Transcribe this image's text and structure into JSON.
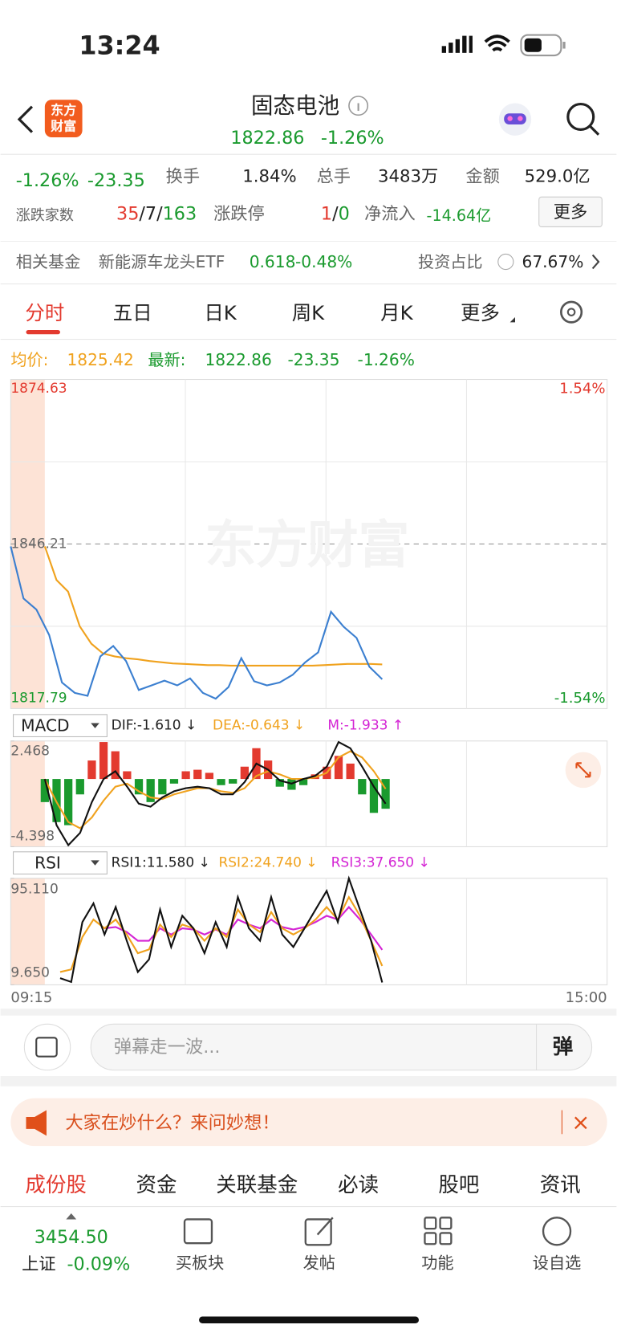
{
  "status": {
    "time": "13:24"
  },
  "header": {
    "logo": [
      "东方",
      "财富"
    ],
    "title": "固态电池",
    "price": "1822.86",
    "change": "-1.26%"
  },
  "stats": {
    "change_pct": "-1.26%",
    "change_amt": "-23.35",
    "turnover_label": "换手",
    "turnover": "1.84%",
    "volume_label": "总手",
    "volume": "3483万",
    "amount_label": "金额",
    "amount": "529.0亿",
    "breadth_label": "涨跌家数",
    "breadth": [
      "35",
      "/7/",
      "163"
    ],
    "limit_label": "涨跌停",
    "limit": [
      "1",
      "/",
      "0"
    ],
    "inflow_label": "净流入",
    "inflow": "-14.64亿",
    "more": "更多"
  },
  "fund": {
    "label": "相关基金",
    "name": "新能源车龙头ETF",
    "price": "0.618",
    "change": "-0.48%",
    "ratio_label": "投资占比",
    "ratio": "67.67%"
  },
  "tabs": [
    "分时",
    "五日",
    "日K",
    "周K",
    "月K",
    "更多"
  ],
  "info": {
    "avg_label": "均价:",
    "avg": "1825.42",
    "latest_label": "最新:",
    "latest": "1822.86",
    "change": "-23.35",
    "pct": "-1.26%"
  },
  "price_chart": {
    "ylim": [
      1817.79,
      1874.63
    ],
    "yticks": [
      1817.79,
      1846.21,
      1874.63
    ],
    "pct_top": "1.54%",
    "pct_bottom": "-1.54%",
    "watermark": "东方财富",
    "price": {
      "color": "#3b7fd0",
      "values": [
        1845.8,
        1836.8,
        1834.9,
        1830.5,
        1822.3,
        1820.5,
        1820.0,
        1826.8,
        1828.6,
        1826.0,
        1821.0,
        1821.8,
        1822.6,
        1821.8,
        1823.0,
        1820.5,
        1819.5,
        1821.5,
        1826.5,
        1822.5,
        1821.8,
        1822.3,
        1823.6,
        1825.8,
        1827.5,
        1834.5,
        1831.9,
        1830.0,
        1825.0,
        1822.86
      ]
    },
    "avg": {
      "color": "#f0a21e",
      "values": [
        1845.8,
        1840.0,
        1838.0,
        1832.0,
        1829.0,
        1827.3,
        1826.8,
        1826.5,
        1826.3,
        1826.0,
        1825.8,
        1825.6,
        1825.5,
        1825.4,
        1825.3,
        1825.3,
        1825.2,
        1825.2,
        1825.2,
        1825.2,
        1825.2,
        1825.2,
        1825.2,
        1825.2,
        1825.3,
        1825.4,
        1825.5,
        1825.5,
        1825.5,
        1825.42
      ]
    }
  },
  "macd": {
    "label": "MACD",
    "dif_text": "DIF:-1.610 ↓",
    "dea_text": "DEA:-0.643 ↓",
    "m_text": "M:-1.933 ↑",
    "ylim": [
      -4.398,
      2.468
    ],
    "yticks": [
      -4.398,
      2.468
    ],
    "hist": [
      -1.5,
      -2.8,
      -3.0,
      -1.0,
      1.2,
      2.4,
      1.8,
      0.5,
      -1.0,
      -1.5,
      -1.0,
      -0.3,
      0.5,
      0.6,
      0.4,
      -0.4,
      -0.3,
      0.8,
      2.0,
      1.2,
      -0.5,
      -0.7,
      -0.4,
      0.3,
      0.8,
      1.5,
      1.0,
      -1.0,
      -2.2,
      -1.933
    ],
    "dif": {
      "color": "#111111",
      "values": [
        0,
        -3.0,
        -4.3,
        -3.5,
        -1.5,
        0,
        0.5,
        -0.5,
        -1.6,
        -1.8,
        -1.2,
        -0.8,
        -0.6,
        -0.5,
        -0.6,
        -1.0,
        -1.0,
        -0.2,
        1.0,
        0.6,
        -0.1,
        -0.3,
        0.0,
        0.2,
        0.8,
        2.4,
        2.0,
        0.8,
        -0.5,
        -1.61
      ]
    },
    "dea": {
      "color": "#f0a21e",
      "values": [
        0,
        -1.5,
        -2.8,
        -3.2,
        -2.5,
        -1.4,
        -0.5,
        -0.3,
        -0.8,
        -1.2,
        -1.3,
        -1.0,
        -0.8,
        -0.6,
        -0.6,
        -0.8,
        -0.9,
        -0.6,
        0.2,
        0.5,
        0.3,
        0.0,
        0.0,
        0.1,
        0.4,
        1.4,
        1.8,
        1.4,
        0.5,
        -0.643
      ]
    }
  },
  "rsi": {
    "label": "RSI",
    "rsi1_text": "RSI1:11.580 ↓",
    "rsi2_text": "RSI2:24.740 ↓",
    "rsi3_text": "RSI3:37.650 ↓",
    "ylim": [
      9.65,
      95.11
    ],
    "yticks": [
      {
        "value": 9.65,
        "label": "9.650"
      },
      {
        "value": 95.11,
        "label": "95.110"
      }
    ],
    "rsi1": {
      "color": "#111111",
      "values": [
        15,
        12,
        60,
        75,
        50,
        72,
        45,
        20,
        30,
        70,
        40,
        65,
        55,
        35,
        60,
        40,
        80,
        55,
        45,
        80,
        50,
        40,
        55,
        70,
        85,
        60,
        95,
        70,
        45,
        11.58
      ]
    },
    "rsi2": {
      "color": "#f0a21e",
      "values": [
        20,
        22,
        48,
        62,
        55,
        62,
        50,
        35,
        38,
        58,
        48,
        58,
        55,
        45,
        55,
        48,
        70,
        58,
        52,
        68,
        55,
        50,
        55,
        62,
        72,
        62,
        80,
        65,
        45,
        24.74
      ]
    },
    "rsi3": {
      "color": "#d424d4",
      "values": [
        null,
        null,
        null,
        null,
        55,
        56,
        52,
        45,
        45,
        55,
        50,
        55,
        54,
        50,
        54,
        50,
        62,
        58,
        55,
        62,
        56,
        54,
        56,
        60,
        65,
        62,
        72,
        62,
        50,
        37.65
      ]
    }
  },
  "x_labels": [
    "09:15",
    "15:00"
  ],
  "comment": {
    "placeholder": "弹幕走一波...",
    "button": "弹"
  },
  "notice": {
    "text": "大家在炒什么？来问妙想！",
    "close": "×"
  },
  "bottom_tabs": [
    "成份股",
    "资金",
    "关联基金",
    "必读",
    "股吧",
    "资讯"
  ],
  "nav": {
    "index_value": "3454.50",
    "index_name": "上证",
    "index_change": "-0.09%",
    "items": [
      "买板块",
      "发帖",
      "功能",
      "设自选"
    ]
  }
}
